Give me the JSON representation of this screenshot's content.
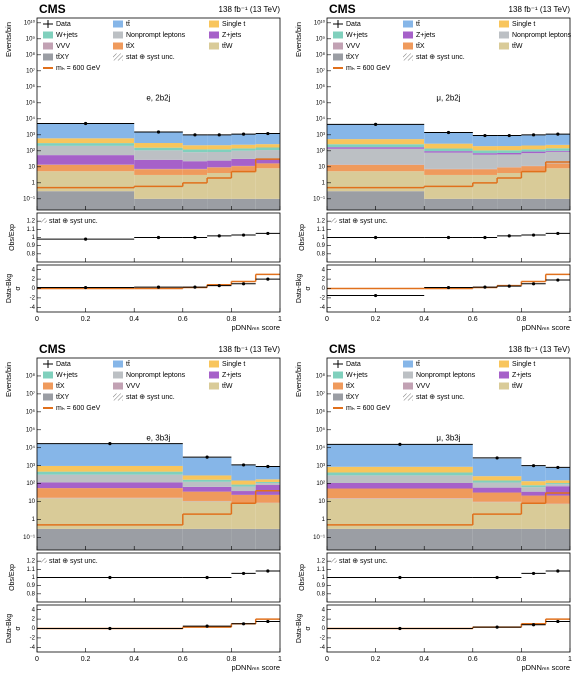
{
  "chart_data": [
    {
      "type": "stacked_histogram",
      "title": "CMS",
      "lumi": "138 fb⁻¹ (13 TeV)",
      "region": "e, 2b2j",
      "y_label": "Events/bin",
      "x_label": "pDNNₘₕ score",
      "log_y": true,
      "bins": [
        0,
        0.4,
        0.6,
        0.7,
        0.8,
        0.9,
        1.0
      ],
      "xlim": [
        0,
        1
      ],
      "xticks": [
        0,
        0.2,
        0.4,
        0.6,
        0.8,
        1
      ],
      "ylim": [
        0.02,
        20000000000
      ],
      "yticks": [
        {
          "value": 0.1,
          "label": "10⁻¹"
        },
        1,
        10,
        {
          "value": 100,
          "label": "10²"
        },
        {
          "value": 1000,
          "label": "10³"
        },
        {
          "value": 10000,
          "label": "10⁴"
        },
        {
          "value": 100000,
          "label": "10⁵"
        },
        {
          "value": 1000000,
          "label": "10⁶"
        },
        {
          "value": 10000000,
          "label": "10⁷"
        },
        {
          "value": 100000000,
          "label": "10⁸"
        },
        {
          "value": 1000000000,
          "label": "10⁹"
        },
        {
          "value": 10000000000,
          "label": "10¹⁰"
        }
      ],
      "data": {
        "name": "Data",
        "color": "#000000",
        "values": [
          5100,
          1500,
          1000,
          1000,
          1100,
          1200
        ]
      },
      "series": [
        {
          "name": "tt̄",
          "color": "#86b6e8",
          "values": [
            4500,
            1200,
            700,
            700,
            800,
            900
          ]
        },
        {
          "name": "Single t",
          "color": "#f8c55c",
          "values": [
            300,
            150,
            100,
            100,
            100,
            100
          ]
        },
        {
          "name": "W+jets",
          "color": "#80d0bd",
          "values": [
            100,
            50,
            40,
            40,
            40,
            50
          ]
        },
        {
          "name": "Nonprompt leptons",
          "color": "#bcc0c4",
          "values": [
            150,
            80,
            60,
            60,
            70,
            80
          ]
        },
        {
          "name": "Z+jets",
          "color": "#a661c9",
          "values": [
            40,
            20,
            15,
            15,
            20,
            15
          ]
        },
        {
          "name": "VVV",
          "color": "#c2a2b4",
          "values": [
            0.5,
            0.3,
            0.3,
            0.3,
            0.3,
            0.3
          ]
        },
        {
          "name": "tt̄X",
          "color": "#ef9a5c",
          "values": [
            8,
            4,
            4,
            5,
            6,
            8
          ]
        },
        {
          "name": "tt̄W",
          "color": "#d9cb98",
          "values": [
            5,
            3,
            3,
            4,
            5,
            8
          ]
        },
        {
          "name": "tt̄XY",
          "color": "#9b9ea4",
          "values": [
            0.3,
            0.1,
            0.1,
            0.1,
            0.1,
            0.1
          ]
        }
      ],
      "uncertainty_name": "stat ⊕ syst unc.",
      "signal": {
        "name": "mₕ = 600 GeV",
        "color": "#e0701c",
        "values": [
          0.5,
          0.6,
          1,
          2,
          5,
          30
        ]
      },
      "ratio": {
        "y_label": "Obs/Exp",
        "unc_label": "stat ⊕ syst unc.",
        "ylim": [
          0.7,
          1.3
        ],
        "yticks": [
          0.8,
          0.9,
          1,
          1.1,
          1.2
        ],
        "values": [
          0.98,
          1.0,
          1.0,
          1.02,
          1.03,
          1.05
        ]
      },
      "significance": {
        "y_label": "Data-Bkg",
        "y_label_denominator": "σ",
        "ylim": [
          -5,
          5
        ],
        "yticks": [
          -4,
          -2,
          0,
          2,
          4
        ],
        "values": [
          0.2,
          0.3,
          0.3,
          0.6,
          1,
          2
        ],
        "signal_values": [
          0,
          0,
          0.2,
          0.8,
          1.5,
          3
        ]
      }
    },
    {
      "type": "stacked_histogram",
      "title": "CMS",
      "lumi": "138 fb⁻¹ (13 TeV)",
      "region": "μ, 2b2j",
      "y_label": "Events/bin",
      "x_label": "pDNNₘₕ score",
      "log_y": true,
      "bins": [
        0,
        0.4,
        0.6,
        0.7,
        0.8,
        0.9,
        1.0
      ],
      "xlim": [
        0,
        1
      ],
      "xticks": [
        0,
        0.2,
        0.4,
        0.6,
        0.8,
        1
      ],
      "ylim": [
        0.02,
        20000000000
      ],
      "yticks": [
        {
          "value": 0.1,
          "label": "10⁻¹"
        },
        1,
        10,
        {
          "value": 100,
          "label": "10²"
        },
        {
          "value": 1000,
          "label": "10³"
        },
        {
          "value": 10000,
          "label": "10⁴"
        },
        {
          "value": 100000,
          "label": "10⁵"
        },
        {
          "value": 1000000,
          "label": "10⁶"
        },
        {
          "value": 10000000,
          "label": "10⁷"
        },
        {
          "value": 100000000,
          "label": "10⁸"
        },
        {
          "value": 1000000000,
          "label": "10⁹"
        },
        {
          "value": 10000000000,
          "label": "10¹⁰"
        }
      ],
      "data": {
        "name": "Data",
        "color": "#000000",
        "values": [
          4500,
          1400,
          900,
          900,
          1000,
          1100
        ]
      },
      "series": [
        {
          "name": "tt̄",
          "color": "#86b6e8",
          "values": [
            4000,
            1100,
            650,
            650,
            700,
            800
          ]
        },
        {
          "name": "Single t",
          "color": "#f8c55c",
          "values": [
            280,
            140,
            90,
            90,
            90,
            90
          ]
        },
        {
          "name": "W+jets",
          "color": "#80d0bd",
          "values": [
            90,
            45,
            35,
            35,
            35,
            45
          ]
        },
        {
          "name": "Z+jets",
          "color": "#a661c9",
          "values": [
            35,
            18,
            14,
            14,
            18,
            14
          ]
        },
        {
          "name": "Nonprompt leptons",
          "color": "#bcc0c4",
          "values": [
            120,
            70,
            50,
            50,
            60,
            70
          ]
        },
        {
          "name": "VVV",
          "color": "#c2a2b4",
          "values": [
            0.5,
            0.3,
            0.3,
            0.3,
            0.3,
            0.3
          ]
        },
        {
          "name": "tt̄X",
          "color": "#ef9a5c",
          "values": [
            8,
            4,
            4,
            5,
            6,
            8
          ]
        },
        {
          "name": "tt̄W",
          "color": "#d9cb98",
          "values": [
            5,
            3,
            3,
            4,
            5,
            8
          ]
        },
        {
          "name": "tt̄XY",
          "color": "#9b9ea4",
          "values": [
            0.3,
            0.1,
            0.1,
            0.1,
            0.1,
            0.1
          ]
        }
      ],
      "uncertainty_name": "stat ⊕ syst unc.",
      "signal": {
        "name": "mₕ = 600 GeV",
        "color": "#e0701c",
        "values": [
          0.5,
          0.6,
          1,
          2,
          5,
          20
        ]
      },
      "ratio": {
        "y_label": "Obs/Exp",
        "unc_label": "stat ⊕ syst unc.",
        "ylim": [
          0.7,
          1.3
        ],
        "yticks": [
          0.8,
          0.9,
          1,
          1.1,
          1.2
        ],
        "values": [
          1.0,
          1.0,
          1.0,
          1.02,
          1.03,
          1.05
        ]
      },
      "significance": {
        "y_label": "Data-Bkg",
        "y_label_denominator": "σ",
        "ylim": [
          -5,
          5
        ],
        "yticks": [
          -4,
          -2,
          0,
          2,
          4
        ],
        "values": [
          -1.5,
          0.2,
          0.3,
          0.5,
          1,
          1.8
        ],
        "signal_values": [
          0,
          0,
          0.2,
          0.6,
          1.5,
          3
        ]
      }
    },
    {
      "type": "stacked_histogram",
      "title": "CMS",
      "lumi": "138 fb⁻¹ (13 TeV)",
      "region": "e, 3b3j",
      "y_label": "Events/bin",
      "x_label": "pDNNₘₕ score",
      "log_y": true,
      "bins": [
        0,
        0.6,
        0.8,
        0.9,
        1.0
      ],
      "xlim": [
        0,
        1
      ],
      "xticks": [
        0,
        0.2,
        0.4,
        0.6,
        0.8,
        1
      ],
      "ylim": [
        0.02,
        1000000000
      ],
      "yticks": [
        {
          "value": 0.1,
          "label": "10⁻¹"
        },
        1,
        10,
        {
          "value": 100,
          "label": "10²"
        },
        {
          "value": 1000,
          "label": "10³"
        },
        {
          "value": 10000,
          "label": "10⁴"
        },
        {
          "value": 100000,
          "label": "10⁵"
        },
        {
          "value": 1000000,
          "label": "10⁶"
        },
        {
          "value": 10000000,
          "label": "10⁷"
        },
        {
          "value": 100000000,
          "label": "10⁸"
        }
      ],
      "data": {
        "name": "Data",
        "color": "#000000",
        "values": [
          17000,
          3000,
          1100,
          900
        ]
      },
      "series": [
        {
          "name": "tt̄",
          "color": "#86b6e8",
          "values": [
            15000,
            2500,
            900,
            700
          ]
        },
        {
          "name": "Single t",
          "color": "#f8c55c",
          "values": [
            500,
            120,
            60,
            50
          ]
        },
        {
          "name": "W+jets",
          "color": "#80d0bd",
          "values": [
            150,
            40,
            20,
            15
          ]
        },
        {
          "name": "Nonprompt leptons",
          "color": "#bcc0c4",
          "values": [
            200,
            60,
            30,
            25
          ]
        },
        {
          "name": "Z+jets",
          "color": "#a661c9",
          "values": [
            60,
            30,
            15,
            60
          ]
        },
        {
          "name": "tt̄X",
          "color": "#ef9a5c",
          "values": [
            40,
            25,
            15,
            15
          ]
        },
        {
          "name": "VVV",
          "color": "#c2a2b4",
          "values": [
            1,
            0.5,
            0.3,
            0.3
          ]
        },
        {
          "name": "tt̄W",
          "color": "#d9cb98",
          "values": [
            15,
            10,
            8,
            8
          ]
        },
        {
          "name": "tt̄XY",
          "color": "#9b9ea4",
          "values": [
            0.3,
            0.3,
            0.3,
            0.3
          ]
        }
      ],
      "uncertainty_name": "stat ⊕ syst unc.",
      "signal": {
        "name": "mₕ = 600 GeV",
        "color": "#e0701c",
        "values": [
          0.5,
          2,
          8,
          40
        ]
      },
      "ratio": {
        "y_label": "Obs/Exp",
        "unc_label": "stat ⊕ syst unc.",
        "ylim": [
          0.7,
          1.3
        ],
        "yticks": [
          0.8,
          0.9,
          1,
          1.1,
          1.2
        ],
        "values": [
          1.0,
          1.0,
          1.05,
          1.08
        ]
      },
      "significance": {
        "y_label": "Data-Bkg",
        "y_label_denominator": "σ",
        "ylim": [
          -5,
          5
        ],
        "yticks": [
          -4,
          -2,
          0,
          2,
          4
        ],
        "values": [
          0,
          0.5,
          1,
          1.5
        ],
        "signal_values": [
          0,
          0.3,
          1,
          2
        ]
      }
    },
    {
      "type": "stacked_histogram",
      "title": "CMS",
      "lumi": "138 fb⁻¹ (13 TeV)",
      "region": "μ, 3b3j",
      "y_label": "Events/bin",
      "x_label": "pDNNₘₕ score",
      "log_y": true,
      "bins": [
        0,
        0.6,
        0.8,
        0.9,
        1.0
      ],
      "xlim": [
        0,
        1
      ],
      "xticks": [
        0,
        0.2,
        0.4,
        0.6,
        0.8,
        1
      ],
      "ylim": [
        0.02,
        1000000000
      ],
      "yticks": [
        {
          "value": 0.1,
          "label": "10⁻¹"
        },
        1,
        10,
        {
          "value": 100,
          "label": "10²"
        },
        {
          "value": 1000,
          "label": "10³"
        },
        {
          "value": 10000,
          "label": "10⁴"
        },
        {
          "value": 100000,
          "label": "10⁵"
        },
        {
          "value": 1000000,
          "label": "10⁶"
        },
        {
          "value": 10000000,
          "label": "10⁷"
        },
        {
          "value": 100000000,
          "label": "10⁸"
        }
      ],
      "data": {
        "name": "Data",
        "color": "#000000",
        "values": [
          15500,
          2700,
          1000,
          800
        ]
      },
      "series": [
        {
          "name": "tt̄",
          "color": "#86b6e8",
          "values": [
            14000,
            2200,
            800,
            600
          ]
        },
        {
          "name": "Single t",
          "color": "#f8c55c",
          "values": [
            450,
            110,
            55,
            45
          ]
        },
        {
          "name": "W+jets",
          "color": "#80d0bd",
          "values": [
            130,
            35,
            18,
            14
          ]
        },
        {
          "name": "Nonprompt leptons",
          "color": "#bcc0c4",
          "values": [
            180,
            55,
            28,
            22
          ]
        },
        {
          "name": "Z+jets",
          "color": "#a661c9",
          "values": [
            55,
            28,
            14,
            50
          ]
        },
        {
          "name": "tt̄X",
          "color": "#ef9a5c",
          "values": [
            38,
            22,
            14,
            14
          ]
        },
        {
          "name": "VVV",
          "color": "#c2a2b4",
          "values": [
            1,
            0.5,
            0.3,
            0.3
          ]
        },
        {
          "name": "tt̄W",
          "color": "#d9cb98",
          "values": [
            14,
            9,
            7,
            7
          ]
        },
        {
          "name": "tt̄XY",
          "color": "#9b9ea4",
          "values": [
            0.3,
            0.3,
            0.3,
            0.3
          ]
        }
      ],
      "uncertainty_name": "stat ⊕ syst unc.",
      "signal": {
        "name": "mₕ = 600 GeV",
        "color": "#e0701c",
        "values": [
          0.5,
          2,
          8,
          30
        ]
      },
      "ratio": {
        "y_label": "Obs/Exp",
        "unc_label": "stat ⊕ syst unc.",
        "ylim": [
          0.7,
          1.3
        ],
        "yticks": [
          0.8,
          0.9,
          1,
          1.1,
          1.2
        ],
        "values": [
          1.0,
          1.0,
          1.05,
          1.08
        ]
      },
      "significance": {
        "y_label": "Data-Bkg",
        "y_label_denominator": "σ",
        "ylim": [
          -5,
          5
        ],
        "yticks": [
          -4,
          -2,
          0,
          2,
          4
        ],
        "values": [
          0,
          0.3,
          0.8,
          1.5
        ],
        "signal_values": [
          0,
          0.3,
          1,
          2
        ]
      }
    }
  ]
}
